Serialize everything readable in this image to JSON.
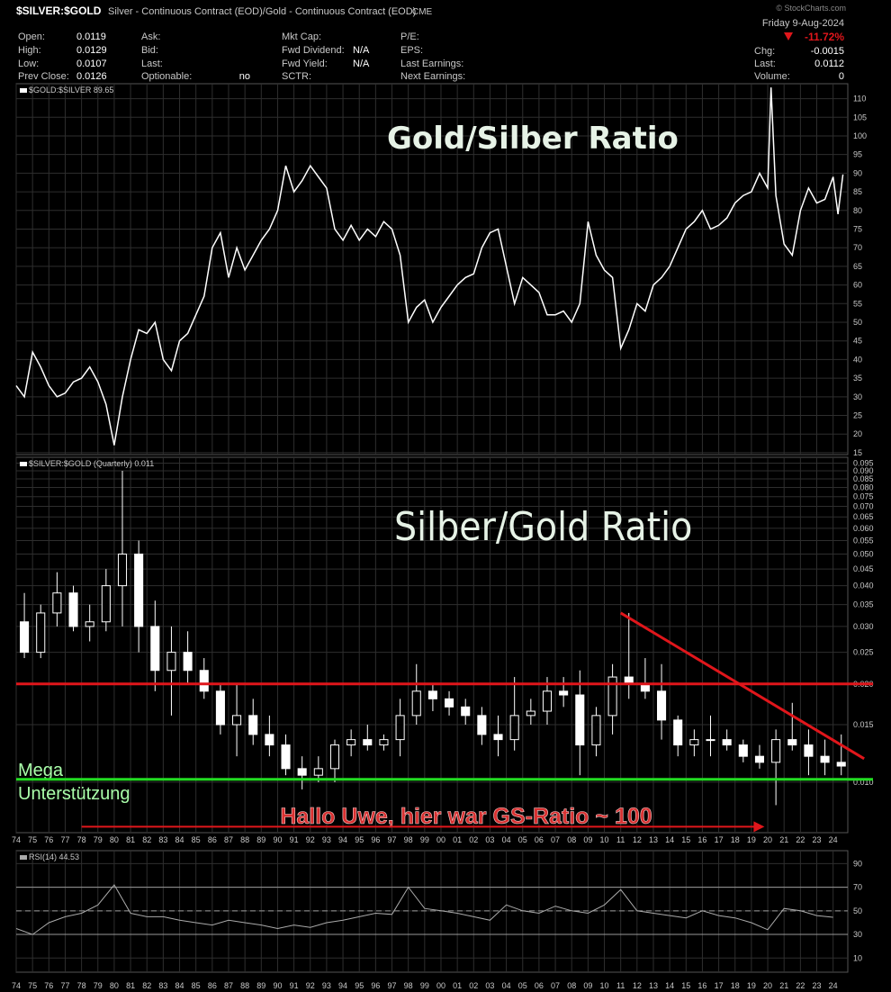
{
  "header": {
    "symbol": "$SILVER:$GOLD",
    "description": "Silver - Continuous Contract (EOD)/Gold - Continuous Contract (EOD)",
    "exchange": "CME",
    "copyright": "© StockCharts.com",
    "date": "Friday  9-Aug-2024",
    "change_pct": "-11.72%",
    "fields": [
      [
        [
          "Open:",
          "0.0119"
        ],
        [
          "High:",
          "0.0129"
        ],
        [
          "Low:",
          "0.0107"
        ],
        [
          "Prev Close:",
          "0.0126"
        ]
      ],
      [
        [
          "Ask:"
        ],
        [
          "Bid:"
        ],
        [
          "Last:"
        ],
        [
          "Optionable:",
          "no"
        ]
      ],
      [
        [
          "Mkt Cap:"
        ],
        [
          "Fwd Dividend:",
          "N/A"
        ],
        [
          "Fwd Yield:",
          "N/A"
        ],
        [
          "SCTR:"
        ]
      ],
      [
        [
          "P/E:"
        ],
        [
          "EPS:"
        ],
        [
          "Last Earnings:"
        ],
        [
          "Next Earnings:"
        ]
      ],
      [
        [
          "Chg:",
          "-0.0015"
        ],
        [
          "Last:",
          "0.0112"
        ],
        [
          "Volume:",
          "0"
        ]
      ]
    ]
  },
  "chart_data": [
    {
      "type": "line",
      "legend": "$GOLD:$SILVER 89.65",
      "title": "Gold/Silber Ratio",
      "color": "#ffffff",
      "xlim": [
        1974,
        2024.9
      ],
      "ylim": [
        14.5,
        114
      ],
      "log": false,
      "grid": true,
      "yticks": [
        15,
        20,
        25,
        30,
        35,
        40,
        45,
        50,
        55,
        60,
        65,
        70,
        75,
        80,
        85,
        90,
        95,
        100,
        105,
        110
      ],
      "x": [
        1974,
        1974.5,
        1975,
        1975.5,
        1976,
        1976.5,
        1977,
        1977.5,
        1978,
        1978.5,
        1979,
        1979.5,
        1980,
        1980.5,
        1981,
        1981.5,
        1982,
        1982.5,
        1983,
        1983.5,
        1984,
        1984.5,
        1985,
        1985.5,
        1986,
        1986.5,
        1987,
        1987.5,
        1988,
        1988.5,
        1989,
        1989.5,
        1990,
        1990.5,
        1991,
        1991.5,
        1992,
        1992.5,
        1993,
        1993.5,
        1994,
        1994.5,
        1995,
        1995.5,
        1996,
        1996.5,
        1997,
        1997.5,
        1998,
        1998.5,
        1999,
        1999.5,
        2000,
        2000.5,
        2001,
        2001.5,
        2002,
        2002.5,
        2003,
        2003.5,
        2004,
        2004.5,
        2005,
        2005.5,
        2006,
        2006.5,
        2007,
        2007.5,
        2008,
        2008.5,
        2009,
        2009.5,
        2010,
        2010.5,
        2011,
        2011.5,
        2012,
        2012.5,
        2013,
        2013.5,
        2014,
        2014.5,
        2015,
        2015.5,
        2016,
        2016.5,
        2017,
        2017.5,
        2018,
        2018.5,
        2019,
        2019.5,
        2020,
        2020.2,
        2020.5,
        2021,
        2021.5,
        2022,
        2022.5,
        2023,
        2023.5,
        2024,
        2024.3,
        2024.6
      ],
      "values": [
        33,
        30,
        42,
        38,
        33,
        30,
        31,
        34,
        35,
        38,
        34,
        28,
        17,
        30,
        40,
        48,
        47,
        50,
        40,
        37,
        45,
        47,
        52,
        57,
        70,
        74,
        62,
        70,
        64,
        68,
        72,
        75,
        80,
        92,
        85,
        88,
        92,
        89,
        86,
        75,
        72,
        76,
        72,
        75,
        73,
        77,
        75,
        68,
        50,
        54,
        56,
        50,
        54,
        57,
        60,
        62,
        63,
        70,
        74,
        75,
        65,
        55,
        62,
        60,
        58,
        52,
        52,
        53,
        50,
        55,
        77,
        68,
        64,
        62,
        43,
        48,
        55,
        53,
        60,
        62,
        65,
        70,
        75,
        77,
        80,
        75,
        76,
        78,
        82,
        84,
        85,
        90,
        86,
        113,
        84,
        71,
        68,
        80,
        86,
        82,
        83,
        89,
        79,
        89.65
      ]
    },
    {
      "type": "candlestick",
      "legend": "$SILVER:$GOLD (Quarterly) 0.011",
      "title": "Silber/Gold Ratio",
      "annotations": [
        "Mega",
        "Unterstützung",
        "Hallo Uwe, hier war GS-Ratio ~ 100"
      ],
      "color": "#ffffff",
      "xlim": [
        1974,
        2024.9
      ],
      "ylim": [
        0.007,
        0.099
      ],
      "log": true,
      "grid": true,
      "yticks": [
        {
          "value": 0.01,
          "label": "0.010"
        },
        0.015,
        {
          "value": 0.02,
          "label": "0.020"
        },
        0.025,
        {
          "value": 0.03,
          "label": "0.030"
        },
        0.035,
        {
          "value": 0.04,
          "label": "0.040"
        },
        0.045,
        {
          "value": 0.05,
          "label": "0.050"
        },
        0.055,
        {
          "value": 0.06,
          "label": "0.060"
        },
        0.065,
        {
          "value": 0.07,
          "label": "0.070"
        },
        0.075,
        {
          "value": 0.08,
          "label": "0.080"
        },
        0.085,
        {
          "value": 0.09,
          "label": "0.090"
        },
        0.095
      ],
      "xticks": [
        {
          "value": 1974,
          "label": "74"
        },
        {
          "value": 1975,
          "label": "75"
        },
        {
          "value": 1976,
          "label": "76"
        },
        {
          "value": 1977,
          "label": "77"
        },
        {
          "value": 1978,
          "label": "78"
        },
        {
          "value": 1979,
          "label": "79"
        },
        {
          "value": 1980,
          "label": "80"
        },
        {
          "value": 1981,
          "label": "81"
        },
        {
          "value": 1982,
          "label": "82"
        },
        {
          "value": 1983,
          "label": "83"
        },
        {
          "value": 1984,
          "label": "84"
        },
        {
          "value": 1985,
          "label": "85"
        },
        {
          "value": 1986,
          "label": "86"
        },
        {
          "value": 1987,
          "label": "87"
        },
        {
          "value": 1988,
          "label": "88"
        },
        {
          "value": 1989,
          "label": "89"
        },
        {
          "value": 1990,
          "label": "90"
        },
        {
          "value": 1991,
          "label": "91"
        },
        {
          "value": 1992,
          "label": "92"
        },
        {
          "value": 1993,
          "label": "93"
        },
        {
          "value": 1994,
          "label": "94"
        },
        {
          "value": 1995,
          "label": "95"
        },
        {
          "value": 1996,
          "label": "96"
        },
        {
          "value": 1997,
          "label": "97"
        },
        {
          "value": 1998,
          "label": "98"
        },
        {
          "value": 1999,
          "label": "99"
        },
        {
          "value": 2000,
          "label": "00"
        },
        {
          "value": 2001,
          "label": "01"
        },
        {
          "value": 2002,
          "label": "02"
        },
        {
          "value": 2003,
          "label": "03"
        },
        {
          "value": 2004,
          "label": "04"
        },
        {
          "value": 2005,
          "label": "05"
        },
        {
          "value": 2006,
          "label": "06"
        },
        {
          "value": 2007,
          "label": "07"
        },
        {
          "value": 2008,
          "label": "08"
        },
        {
          "value": 2009,
          "label": "09"
        },
        {
          "value": 2010,
          "label": "10"
        },
        {
          "value": 2011,
          "label": "11"
        },
        {
          "value": 2012,
          "label": "12"
        },
        {
          "value": 2013,
          "label": "13"
        },
        {
          "value": 2014,
          "label": "14"
        },
        {
          "value": 2015,
          "label": "15"
        },
        {
          "value": 2016,
          "label": "16"
        },
        {
          "value": 2017,
          "label": "17"
        },
        {
          "value": 2018,
          "label": "18"
        },
        {
          "value": 2019,
          "label": "19"
        },
        {
          "value": 2020,
          "label": "20"
        },
        {
          "value": 2021,
          "label": "21"
        },
        {
          "value": 2022,
          "label": "22"
        },
        {
          "value": 2023,
          "label": "23"
        },
        {
          "value": 2024,
          "label": "24"
        }
      ],
      "x": [
        1974,
        1975,
        1976,
        1977,
        1978,
        1979,
        1980,
        1981,
        1982,
        1983,
        1984,
        1985,
        1986,
        1987,
        1988,
        1989,
        1990,
        1991,
        1992,
        1993,
        1994,
        1995,
        1996,
        1997,
        1998,
        1999,
        2000,
        2001,
        2002,
        2003,
        2004,
        2005,
        2006,
        2007,
        2008,
        2009,
        2010,
        2011,
        2012,
        2013,
        2014,
        2015,
        2016,
        2017,
        2018,
        2019,
        2020,
        2021,
        2022,
        2023,
        2024
      ],
      "open": [
        0.031,
        0.025,
        0.033,
        0.038,
        0.03,
        0.031,
        0.04,
        0.05,
        0.03,
        0.022,
        0.025,
        0.022,
        0.019,
        0.015,
        0.016,
        0.014,
        0.013,
        0.011,
        0.0105,
        0.011,
        0.013,
        0.0135,
        0.013,
        0.0135,
        0.016,
        0.019,
        0.018,
        0.017,
        0.016,
        0.014,
        0.0135,
        0.016,
        0.0165,
        0.019,
        0.0185,
        0.013,
        0.016,
        0.021,
        0.02,
        0.019,
        0.0155,
        0.013,
        0.0135,
        0.0135,
        0.013,
        0.012,
        0.0115,
        0.0135,
        0.013,
        0.012,
        0.0115
      ],
      "high": [
        0.038,
        0.035,
        0.044,
        0.04,
        0.035,
        0.045,
        0.09,
        0.055,
        0.036,
        0.03,
        0.029,
        0.024,
        0.02,
        0.02,
        0.018,
        0.016,
        0.014,
        0.012,
        0.012,
        0.0135,
        0.0145,
        0.015,
        0.014,
        0.018,
        0.023,
        0.02,
        0.019,
        0.018,
        0.017,
        0.016,
        0.021,
        0.018,
        0.021,
        0.021,
        0.022,
        0.017,
        0.023,
        0.033,
        0.024,
        0.023,
        0.016,
        0.0145,
        0.016,
        0.0145,
        0.0135,
        0.013,
        0.0145,
        0.0175,
        0.0145,
        0.0135,
        0.014
      ],
      "low": [
        0.024,
        0.024,
        0.03,
        0.029,
        0.027,
        0.029,
        0.03,
        0.025,
        0.019,
        0.016,
        0.02,
        0.018,
        0.014,
        0.012,
        0.013,
        0.012,
        0.0105,
        0.0095,
        0.01,
        0.01,
        0.012,
        0.0125,
        0.0125,
        0.012,
        0.015,
        0.0165,
        0.016,
        0.015,
        0.013,
        0.012,
        0.0125,
        0.015,
        0.015,
        0.017,
        0.0105,
        0.012,
        0.014,
        0.018,
        0.018,
        0.0135,
        0.012,
        0.012,
        0.012,
        0.0125,
        0.0115,
        0.011,
        0.0085,
        0.0125,
        0.0105,
        0.0105,
        0.0105
      ],
      "close": [
        0.025,
        0.033,
        0.038,
        0.03,
        0.031,
        0.04,
        0.05,
        0.03,
        0.022,
        0.025,
        0.022,
        0.019,
        0.015,
        0.016,
        0.014,
        0.013,
        0.011,
        0.0105,
        0.011,
        0.013,
        0.0135,
        0.013,
        0.0135,
        0.016,
        0.019,
        0.018,
        0.017,
        0.016,
        0.014,
        0.0135,
        0.016,
        0.0165,
        0.019,
        0.0185,
        0.013,
        0.016,
        0.021,
        0.02,
        0.019,
        0.0155,
        0.013,
        0.0135,
        0.0135,
        0.013,
        0.012,
        0.0115,
        0.0135,
        0.013,
        0.012,
        0.0115,
        0.0112
      ],
      "hlines": [
        {
          "value": 0.02,
          "color": "#e0161b"
        },
        {
          "value": 0.0102,
          "color": "#22dd22"
        }
      ],
      "trendline": {
        "x": [
          2011,
          2025.9
        ],
        "y": [
          0.033,
          0.0118
        ],
        "color": "#e0161b"
      },
      "arrow": {
        "x": [
          1978,
          2019.8
        ],
        "y": 0.0073,
        "color": "#e0161b"
      }
    },
    {
      "type": "line",
      "legend": "RSI(14) 44.53",
      "color": "#aaaaaa",
      "xlim": [
        1974,
        2024.9
      ],
      "ylim": [
        -2,
        101
      ],
      "log": false,
      "grid": true,
      "yticks": [
        10,
        30,
        50,
        70,
        90
      ],
      "levels": [
        70,
        50,
        30
      ],
      "level_styles": [
        "solid",
        "dashed",
        "solid"
      ],
      "xticks": [
        {
          "value": 1974,
          "label": "74"
        },
        {
          "value": 1975,
          "label": "75"
        },
        {
          "value": 1976,
          "label": "76"
        },
        {
          "value": 1977,
          "label": "77"
        },
        {
          "value": 1978,
          "label": "78"
        },
        {
          "value": 1979,
          "label": "79"
        },
        {
          "value": 1980,
          "label": "80"
        },
        {
          "value": 1981,
          "label": "81"
        },
        {
          "value": 1982,
          "label": "82"
        },
        {
          "value": 1983,
          "label": "83"
        },
        {
          "value": 1984,
          "label": "84"
        },
        {
          "value": 1985,
          "label": "85"
        },
        {
          "value": 1986,
          "label": "86"
        },
        {
          "value": 1987,
          "label": "87"
        },
        {
          "value": 1988,
          "label": "88"
        },
        {
          "value": 1989,
          "label": "89"
        },
        {
          "value": 1990,
          "label": "90"
        },
        {
          "value": 1991,
          "label": "91"
        },
        {
          "value": 1992,
          "label": "92"
        },
        {
          "value": 1993,
          "label": "93"
        },
        {
          "value": 1994,
          "label": "94"
        },
        {
          "value": 1995,
          "label": "95"
        },
        {
          "value": 1996,
          "label": "96"
        },
        {
          "value": 1997,
          "label": "97"
        },
        {
          "value": 1998,
          "label": "98"
        },
        {
          "value": 1999,
          "label": "99"
        },
        {
          "value": 2000,
          "label": "00"
        },
        {
          "value": 2001,
          "label": "01"
        },
        {
          "value": 2002,
          "label": "02"
        },
        {
          "value": 2003,
          "label": "03"
        },
        {
          "value": 2004,
          "label": "04"
        },
        {
          "value": 2005,
          "label": "05"
        },
        {
          "value": 2006,
          "label": "06"
        },
        {
          "value": 2007,
          "label": "07"
        },
        {
          "value": 2008,
          "label": "08"
        },
        {
          "value": 2009,
          "label": "09"
        },
        {
          "value": 2010,
          "label": "10"
        },
        {
          "value": 2011,
          "label": "11"
        },
        {
          "value": 2012,
          "label": "12"
        },
        {
          "value": 2013,
          "label": "13"
        },
        {
          "value": 2014,
          "label": "14"
        },
        {
          "value": 2015,
          "label": "15"
        },
        {
          "value": 2016,
          "label": "16"
        },
        {
          "value": 2017,
          "label": "17"
        },
        {
          "value": 2018,
          "label": "18"
        },
        {
          "value": 2019,
          "label": "19"
        },
        {
          "value": 2020,
          "label": "20"
        },
        {
          "value": 2021,
          "label": "21"
        },
        {
          "value": 2022,
          "label": "22"
        },
        {
          "value": 2023,
          "label": "23"
        },
        {
          "value": 2024,
          "label": "24"
        }
      ],
      "x": [
        1974,
        1975,
        1976,
        1977,
        1978,
        1979,
        1980,
        1981,
        1982,
        1983,
        1984,
        1985,
        1986,
        1987,
        1988,
        1989,
        1990,
        1991,
        1992,
        1993,
        1994,
        1995,
        1996,
        1997,
        1998,
        1999,
        2000,
        2001,
        2002,
        2003,
        2004,
        2005,
        2006,
        2007,
        2008,
        2009,
        2010,
        2011,
        2012,
        2013,
        2014,
        2015,
        2016,
        2017,
        2018,
        2019,
        2020,
        2021,
        2022,
        2023,
        2024
      ],
      "values": [
        35,
        30,
        40,
        45,
        48,
        55,
        72,
        48,
        45,
        45,
        42,
        40,
        38,
        42,
        40,
        38,
        35,
        38,
        36,
        40,
        42,
        45,
        48,
        47,
        70,
        52,
        50,
        48,
        45,
        42,
        55,
        50,
        48,
        54,
        50,
        48,
        55,
        68,
        50,
        48,
        46,
        44,
        50,
        46,
        44,
        40,
        34,
        52,
        50,
        46,
        44.53
      ]
    }
  ]
}
